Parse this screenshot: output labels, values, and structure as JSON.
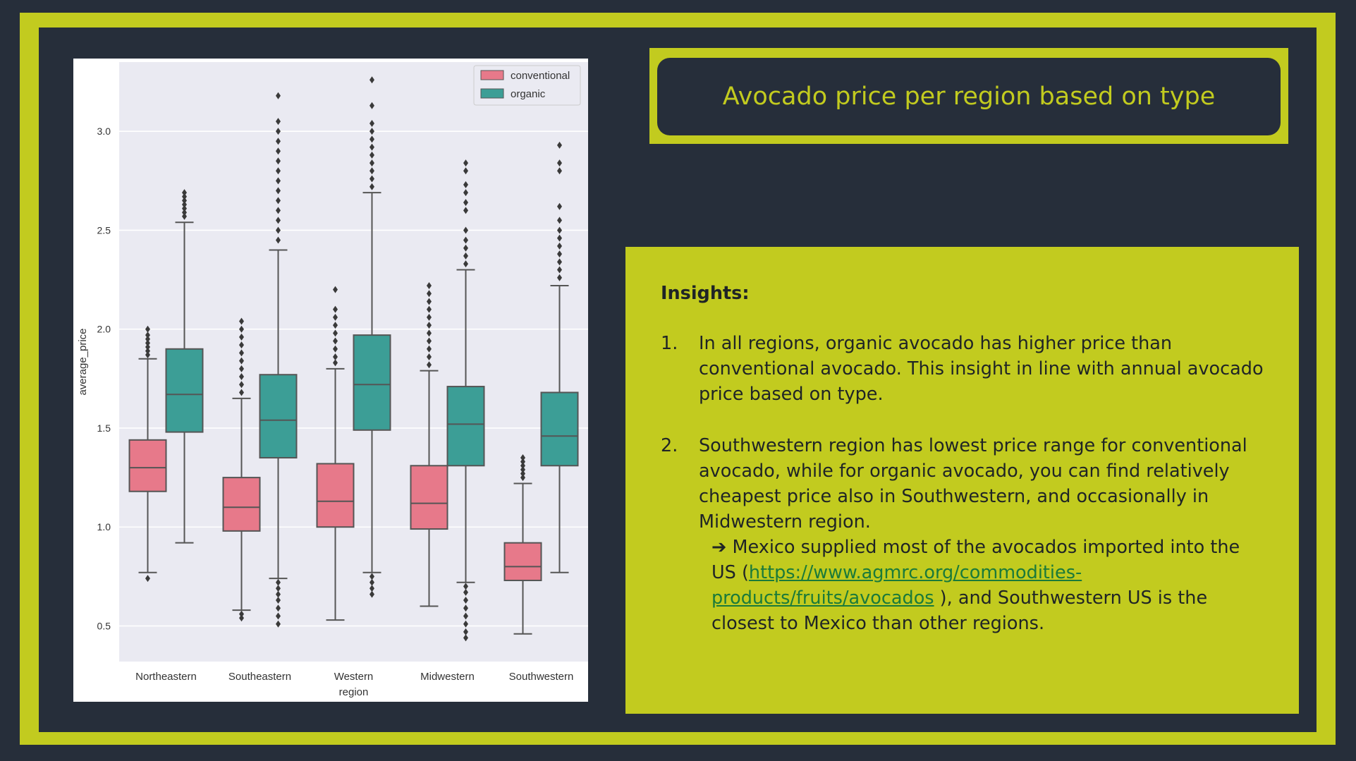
{
  "title": "Avocado price per region based on type",
  "insights": {
    "heading": "Insights:",
    "items": [
      {
        "num": "1.",
        "text": "In all regions, organic avocado has higher price than conventional avocado. This insight in line with annual avocado price based on type."
      },
      {
        "num": "2.",
        "text": "Southwestern region has lowest price range for conventional avocado, while for organic avocado, you can find relatively cheapest price also in Southwestern, and occasionally in Midwestern region."
      }
    ],
    "note": {
      "arrow": "➔",
      "pre": " Mexico supplied most of the avocados imported into the US (",
      "link": "https://www.agmrc.org/commodities-products/fruits/avocados",
      "post": " ), and Southwestern US is the closest to Mexico than other regions."
    }
  },
  "chart_data": {
    "type": "boxplot",
    "xlabel": "region",
    "ylabel": "average_price",
    "ylim": [
      0.32,
      3.35
    ],
    "yticks": [
      "0.5",
      "1.0",
      "1.5",
      "2.0",
      "2.5",
      "3.0"
    ],
    "grid": true,
    "legend_position": "top-right",
    "categories": [
      "Northeastern",
      "Southeastern",
      "Western",
      "Midwestern",
      "Southwestern"
    ],
    "colors": {
      "conventional": "#e7798a",
      "organic": "#3c9e96"
    },
    "series": [
      {
        "name": "conventional",
        "boxes": [
          {
            "whisker_low": 0.77,
            "q1": 1.18,
            "median": 1.3,
            "q3": 1.44,
            "whisker_high": 1.85,
            "outliers": [
              0.74,
              1.87,
              1.89,
              1.91,
              1.93,
              1.95,
              1.97,
              2.0
            ]
          },
          {
            "whisker_low": 0.58,
            "q1": 0.98,
            "median": 1.1,
            "q3": 1.25,
            "whisker_high": 1.65,
            "outliers": [
              0.54,
              0.56,
              1.68,
              1.72,
              1.76,
              1.8,
              1.84,
              1.88,
              1.92,
              1.96,
              2.0,
              2.04
            ]
          },
          {
            "whisker_low": 0.53,
            "q1": 1.0,
            "median": 1.13,
            "q3": 1.32,
            "whisker_high": 1.8,
            "outliers": [
              1.83,
              1.86,
              1.9,
              1.94,
              1.98,
              2.02,
              2.06,
              2.1,
              2.2
            ]
          },
          {
            "whisker_low": 0.6,
            "q1": 0.99,
            "median": 1.12,
            "q3": 1.31,
            "whisker_high": 1.79,
            "outliers": [
              1.82,
              1.86,
              1.9,
              1.94,
              1.98,
              2.02,
              2.06,
              2.1,
              2.14,
              2.18,
              2.22
            ]
          },
          {
            "whisker_low": 0.46,
            "q1": 0.73,
            "median": 0.8,
            "q3": 0.92,
            "whisker_high": 1.22,
            "outliers": [
              1.25,
              1.27,
              1.29,
              1.31,
              1.33,
              1.35
            ]
          }
        ]
      },
      {
        "name": "organic",
        "boxes": [
          {
            "whisker_low": 0.92,
            "q1": 1.48,
            "median": 1.67,
            "q3": 1.9,
            "whisker_high": 2.54,
            "outliers": [
              2.57,
              2.59,
              2.61,
              2.63,
              2.65,
              2.67,
              2.69
            ]
          },
          {
            "whisker_low": 0.74,
            "q1": 1.35,
            "median": 1.54,
            "q3": 1.77,
            "whisker_high": 2.4,
            "outliers": [
              0.51,
              0.55,
              0.59,
              0.63,
              0.66,
              0.69,
              0.72,
              2.45,
              2.5,
              2.55,
              2.6,
              2.65,
              2.7,
              2.75,
              2.8,
              2.85,
              2.9,
              2.95,
              3.0,
              3.05,
              3.18
            ]
          },
          {
            "whisker_low": 0.77,
            "q1": 1.49,
            "median": 1.72,
            "q3": 1.97,
            "whisker_high": 2.69,
            "outliers": [
              0.66,
              0.69,
              0.72,
              0.75,
              2.72,
              2.76,
              2.8,
              2.84,
              2.88,
              2.92,
              2.96,
              3.0,
              3.04,
              3.13,
              3.26
            ]
          },
          {
            "whisker_low": 0.72,
            "q1": 1.31,
            "median": 1.52,
            "q3": 1.71,
            "whisker_high": 2.3,
            "outliers": [
              0.44,
              0.47,
              0.51,
              0.55,
              0.59,
              0.63,
              0.67,
              0.7,
              2.33,
              2.37,
              2.41,
              2.45,
              2.5,
              2.6,
              2.64,
              2.69,
              2.73,
              2.8,
              2.84
            ]
          },
          {
            "whisker_low": 0.77,
            "q1": 1.31,
            "median": 1.46,
            "q3": 1.68,
            "whisker_high": 2.22,
            "outliers": [
              2.26,
              2.3,
              2.34,
              2.38,
              2.42,
              2.46,
              2.5,
              2.55,
              2.62,
              2.8,
              2.84,
              2.93
            ]
          }
        ]
      }
    ]
  }
}
